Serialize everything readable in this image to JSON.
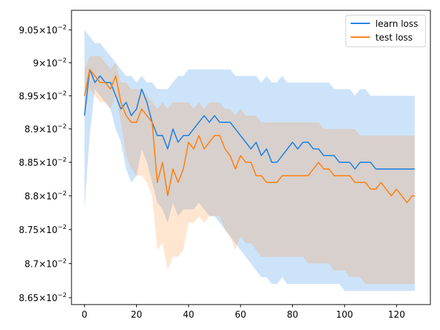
{
  "chart_data": {
    "type": "line",
    "xlim": [
      -5,
      133
    ],
    "ylim": [
      0.0864,
      0.0908
    ],
    "ylog": true,
    "x_ticks": [
      0,
      20,
      40,
      60,
      80,
      100,
      120
    ],
    "y_ticks": [
      {
        "value": 0.0865,
        "mant": "8.65",
        "exp": "−2"
      },
      {
        "value": 0.087,
        "mant": "8.7",
        "exp": "−2"
      },
      {
        "value": 0.0875,
        "mant": "8.75",
        "exp": "−2"
      },
      {
        "value": 0.088,
        "mant": "8.8",
        "exp": "−2"
      },
      {
        "value": 0.0885,
        "mant": "8.85",
        "exp": "−2"
      },
      {
        "value": 0.089,
        "mant": "8.9",
        "exp": "−2"
      },
      {
        "value": 0.0895,
        "mant": "8.95",
        "exp": "−2"
      },
      {
        "value": 0.09,
        "mant": "9",
        "exp": "−2"
      },
      {
        "value": 0.0905,
        "mant": "9.05",
        "exp": "−2"
      }
    ],
    "legend_position": "top-right",
    "series": [
      {
        "name": "learn loss",
        "color": "#1a80e5",
        "band_color": "#1a80e5",
        "band_opacity": 0.22,
        "x": [
          0,
          2,
          4,
          6,
          8,
          10,
          12,
          14,
          16,
          18,
          20,
          22,
          24,
          26,
          28,
          30,
          32,
          34,
          36,
          38,
          40,
          42,
          44,
          46,
          48,
          50,
          52,
          54,
          56,
          58,
          60,
          62,
          64,
          66,
          68,
          70,
          72,
          74,
          76,
          78,
          80,
          82,
          84,
          86,
          88,
          90,
          92,
          94,
          96,
          98,
          100,
          102,
          104,
          106,
          108,
          110,
          112,
          114,
          116,
          118,
          120,
          122,
          124,
          126,
          127
        ],
        "y": [
          0.0892,
          0.0899,
          0.0897,
          0.0898,
          0.0897,
          0.0897,
          0.0895,
          0.0893,
          0.0894,
          0.0892,
          0.0893,
          0.0896,
          0.0894,
          0.0891,
          0.0889,
          0.0889,
          0.0887,
          0.089,
          0.0888,
          0.0889,
          0.0889,
          0.089,
          0.0891,
          0.0892,
          0.0891,
          0.0892,
          0.0891,
          0.0891,
          0.0891,
          0.089,
          0.0889,
          0.0888,
          0.0887,
          0.0888,
          0.0886,
          0.0887,
          0.0885,
          0.0885,
          0.0886,
          0.0887,
          0.0888,
          0.0887,
          0.0888,
          0.0888,
          0.0887,
          0.0887,
          0.0886,
          0.0886,
          0.0886,
          0.0885,
          0.0885,
          0.0885,
          0.0884,
          0.0885,
          0.0885,
          0.0885,
          0.0884,
          0.0884,
          0.0884,
          0.0884,
          0.0884,
          0.0884,
          0.0884,
          0.0884,
          0.0884
        ],
        "lower": [
          0.0878,
          0.0889,
          0.0896,
          0.0895,
          0.0894,
          0.0893,
          0.089,
          0.0888,
          0.0884,
          0.0882,
          0.0883,
          0.0887,
          0.0885,
          0.0882,
          0.0879,
          0.0878,
          0.0876,
          0.0879,
          0.0877,
          0.0878,
          0.0878,
          0.0878,
          0.0879,
          0.0878,
          0.0877,
          0.0877,
          0.0876,
          0.0875,
          0.0874,
          0.0873,
          0.0872,
          0.0871,
          0.087,
          0.0869,
          0.0868,
          0.0868,
          0.0867,
          0.0867,
          0.0868,
          0.0867,
          0.0867,
          0.0867,
          0.0867,
          0.0867,
          0.0867,
          0.0867,
          0.0867,
          0.0867,
          0.0867,
          0.0867,
          0.0866,
          0.0866,
          0.0866,
          0.0866,
          0.0866,
          0.0866,
          0.0866,
          0.0866,
          0.0866,
          0.0866,
          0.0866,
          0.0866,
          0.0866,
          0.0866,
          0.0866
        ],
        "upper": [
          0.0905,
          0.0904,
          0.0903,
          0.0903,
          0.0902,
          0.0901,
          0.09,
          0.0899,
          0.0898,
          0.0898,
          0.0897,
          0.0898,
          0.0897,
          0.0897,
          0.0896,
          0.0896,
          0.0896,
          0.0897,
          0.0898,
          0.0898,
          0.0899,
          0.0899,
          0.0899,
          0.0899,
          0.0899,
          0.0899,
          0.0899,
          0.0899,
          0.0899,
          0.0898,
          0.0898,
          0.0898,
          0.0898,
          0.0898,
          0.0897,
          0.0898,
          0.0897,
          0.0897,
          0.0898,
          0.0897,
          0.0897,
          0.0897,
          0.0897,
          0.0897,
          0.0897,
          0.0897,
          0.0897,
          0.0897,
          0.0896,
          0.0896,
          0.0896,
          0.0896,
          0.0895,
          0.0896,
          0.0896,
          0.0895,
          0.0895,
          0.0895,
          0.0895,
          0.0895,
          0.0895,
          0.0895,
          0.0895,
          0.0895,
          0.0895
        ]
      },
      {
        "name": "test loss",
        "color": "#ff7f0e",
        "band_color": "#ff8c2e",
        "band_opacity": 0.22,
        "x": [
          0,
          2,
          4,
          6,
          8,
          10,
          12,
          14,
          16,
          18,
          20,
          22,
          24,
          26,
          28,
          30,
          32,
          34,
          36,
          38,
          40,
          42,
          44,
          46,
          48,
          50,
          52,
          54,
          56,
          58,
          60,
          62,
          64,
          66,
          68,
          70,
          72,
          74,
          76,
          78,
          80,
          82,
          84,
          86,
          88,
          90,
          92,
          94,
          96,
          98,
          100,
          102,
          104,
          106,
          108,
          110,
          112,
          114,
          116,
          118,
          120,
          122,
          124,
          126,
          127
        ],
        "y": [
          0.0895,
          0.0899,
          0.0898,
          0.0897,
          0.0897,
          0.0896,
          0.0898,
          0.0894,
          0.0892,
          0.0891,
          0.0891,
          0.0893,
          0.0892,
          0.0891,
          0.0882,
          0.0885,
          0.088,
          0.0884,
          0.0882,
          0.0884,
          0.0888,
          0.0887,
          0.0889,
          0.0887,
          0.0888,
          0.0889,
          0.0889,
          0.0887,
          0.0886,
          0.0884,
          0.0886,
          0.0885,
          0.0885,
          0.0883,
          0.0883,
          0.0882,
          0.0882,
          0.0882,
          0.0883,
          0.0883,
          0.0883,
          0.0883,
          0.0883,
          0.0883,
          0.0884,
          0.0885,
          0.0884,
          0.0884,
          0.0883,
          0.0883,
          0.0883,
          0.0883,
          0.0882,
          0.0882,
          0.0882,
          0.0881,
          0.0881,
          0.0882,
          0.0881,
          0.088,
          0.0881,
          0.088,
          0.0879,
          0.088,
          0.088
        ],
        "lower": [
          0.0892,
          0.0896,
          0.0895,
          0.0894,
          0.0894,
          0.0893,
          0.0895,
          0.0891,
          0.0886,
          0.0884,
          0.0883,
          0.0883,
          0.0882,
          0.088,
          0.0872,
          0.0873,
          0.0869,
          0.0871,
          0.0871,
          0.0872,
          0.0876,
          0.0876,
          0.0877,
          0.0876,
          0.0877,
          0.0877,
          0.0877,
          0.0875,
          0.0874,
          0.0872,
          0.0874,
          0.0873,
          0.0873,
          0.0872,
          0.0871,
          0.0871,
          0.0871,
          0.0871,
          0.0871,
          0.0871,
          0.0871,
          0.0871,
          0.0871,
          0.087,
          0.087,
          0.087,
          0.087,
          0.087,
          0.0869,
          0.0869,
          0.0869,
          0.0868,
          0.0868,
          0.0868,
          0.0867,
          0.0867,
          0.0867,
          0.0867,
          0.0867,
          0.0867,
          0.0867,
          0.0867,
          0.0867,
          0.0867,
          0.0867
        ],
        "upper": [
          0.0899,
          0.0901,
          0.0901,
          0.0901,
          0.09,
          0.0899,
          0.09,
          0.0897,
          0.0897,
          0.0896,
          0.0896,
          0.0896,
          0.0895,
          0.0894,
          0.0893,
          0.0894,
          0.0893,
          0.0894,
          0.0894,
          0.0894,
          0.0894,
          0.0893,
          0.0894,
          0.0893,
          0.0894,
          0.0894,
          0.0894,
          0.0893,
          0.0893,
          0.0892,
          0.0893,
          0.0892,
          0.0892,
          0.0892,
          0.0891,
          0.0891,
          0.0891,
          0.0891,
          0.0891,
          0.0891,
          0.0891,
          0.0891,
          0.0891,
          0.0891,
          0.0891,
          0.0891,
          0.089,
          0.089,
          0.089,
          0.089,
          0.089,
          0.089,
          0.089,
          0.0889,
          0.0889,
          0.0889,
          0.0889,
          0.0889,
          0.0889,
          0.0889,
          0.0889,
          0.0889,
          0.0889,
          0.0889,
          0.0889
        ]
      }
    ]
  }
}
